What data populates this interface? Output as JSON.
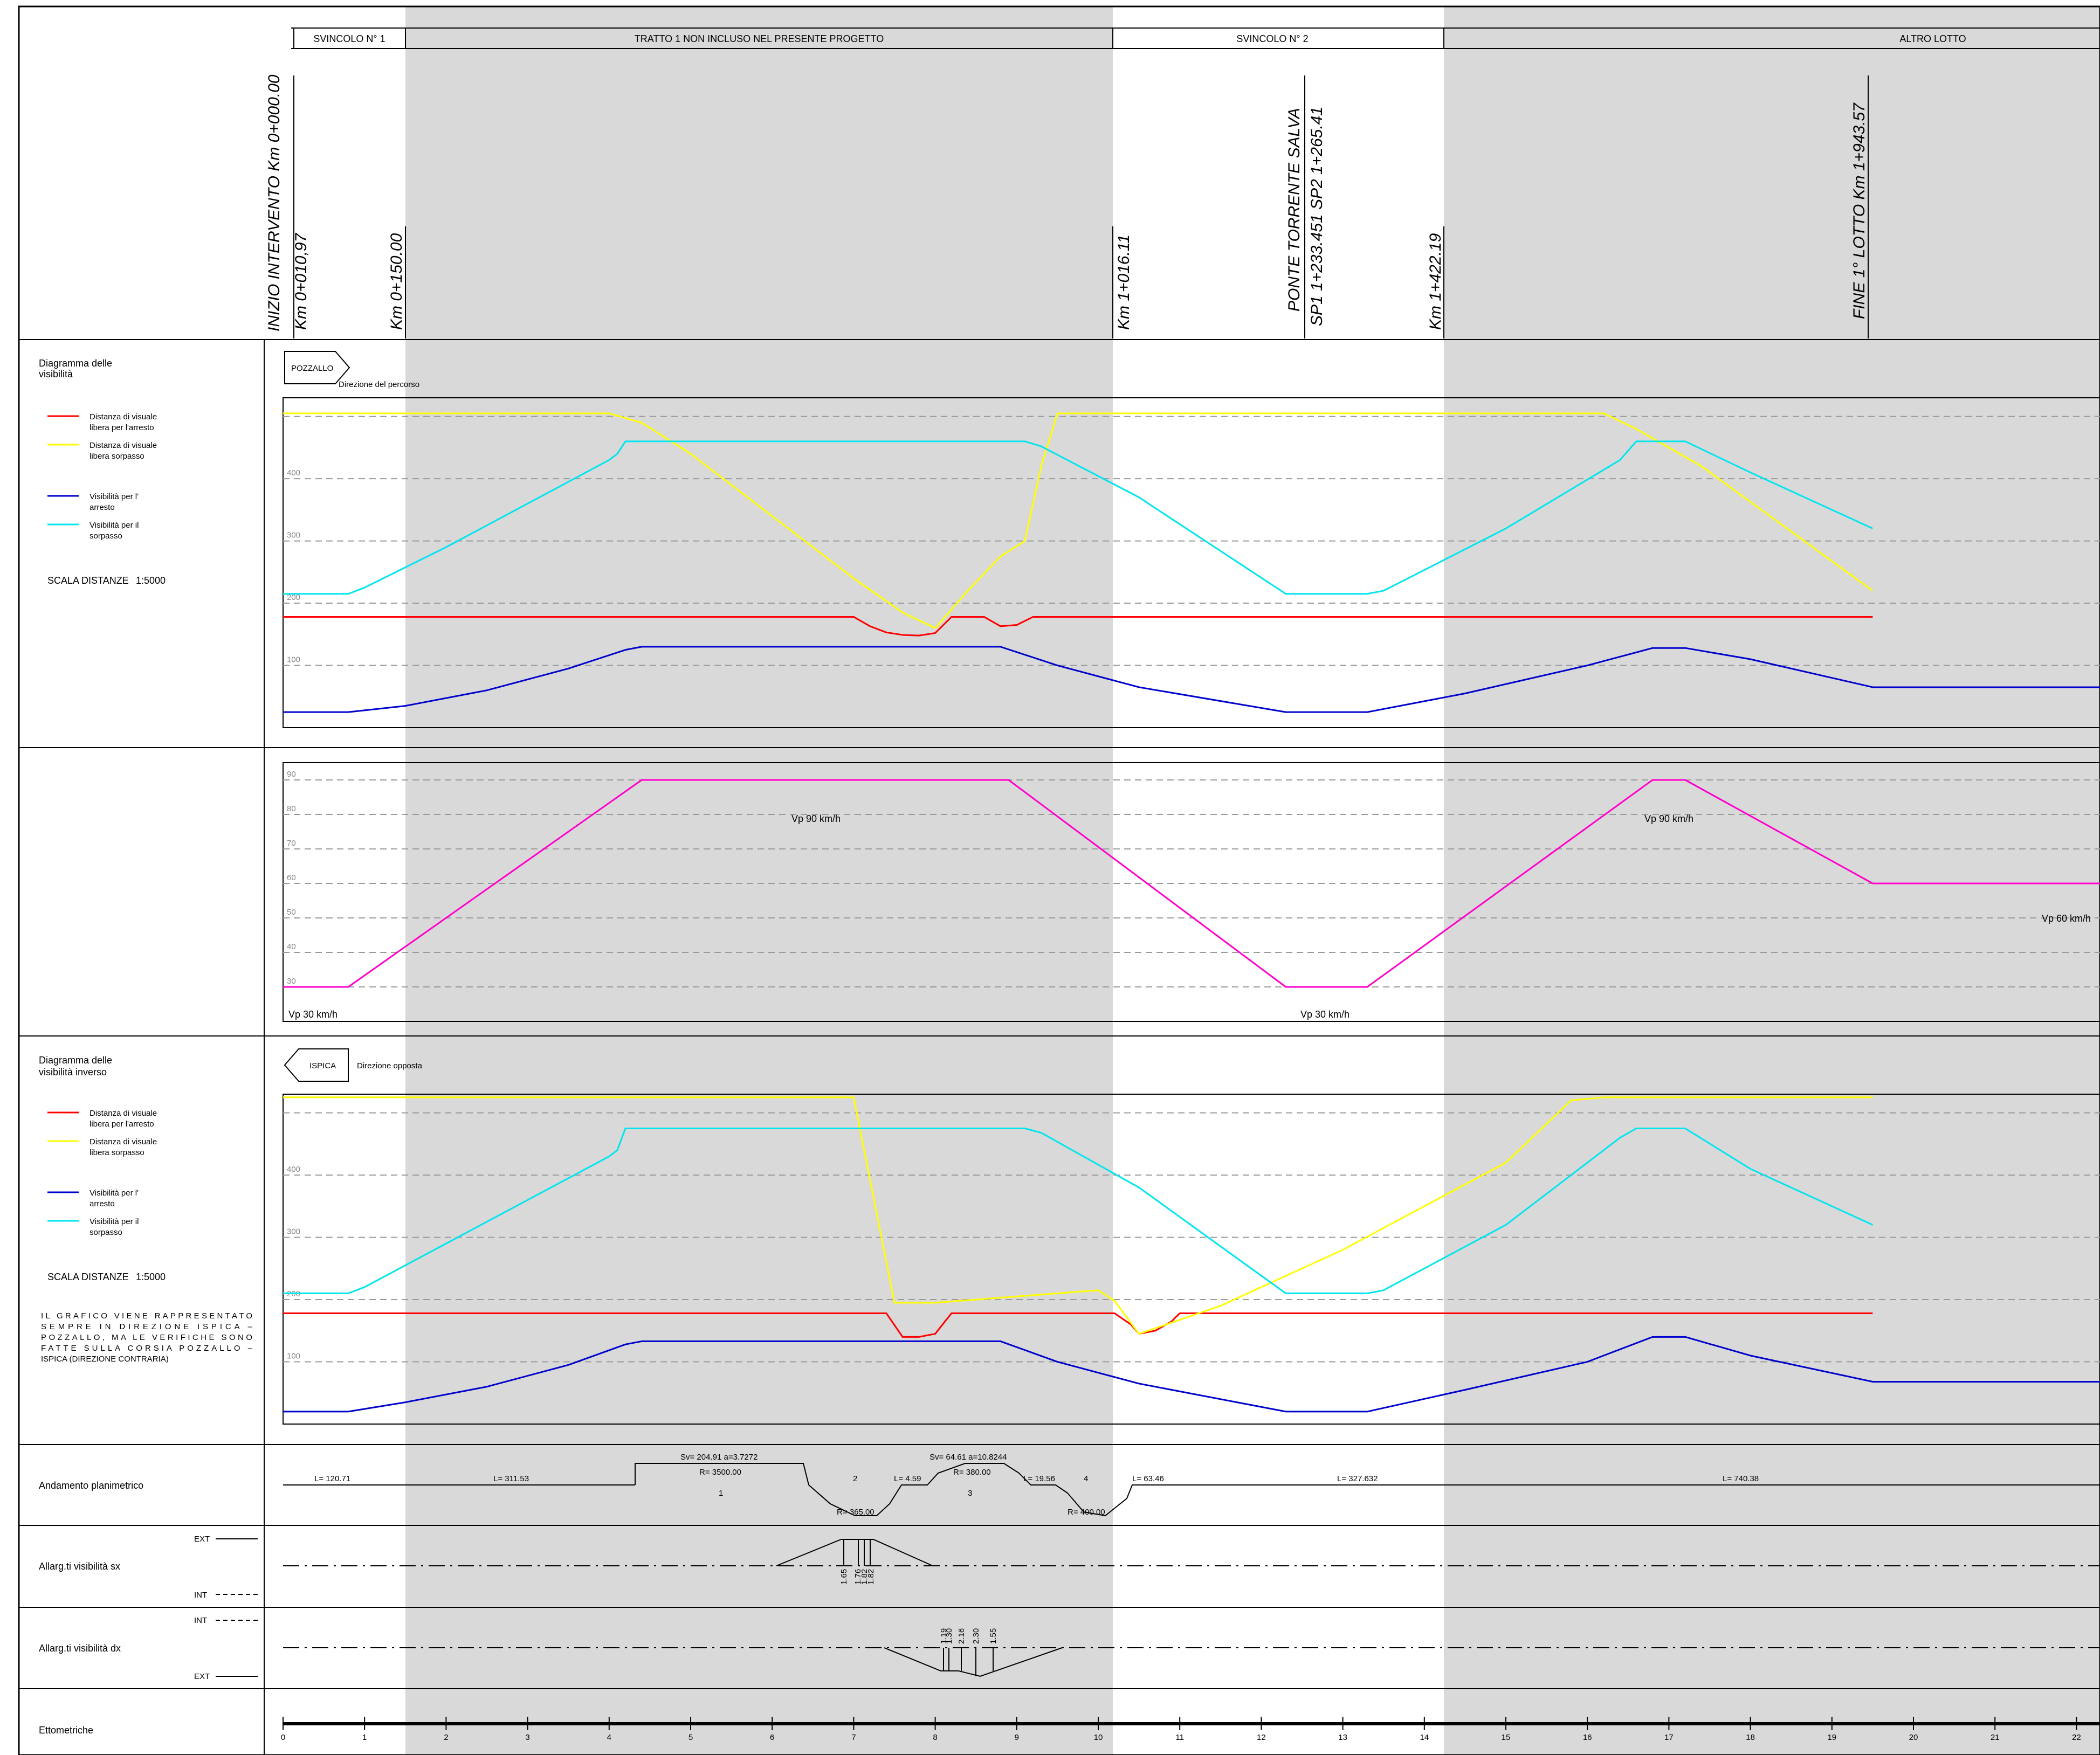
{
  "colors": {
    "stop_distance": "#ff0000",
    "overtake_distance": "#ffff00",
    "stop_visibility": "#0000cc",
    "overtake_visibility": "#00e5ee",
    "speed": "#ff00cc",
    "excluded_zone": "#d9d9d9"
  },
  "header": {
    "sections": [
      {
        "label": "SVINCOLO N° 1"
      },
      {
        "label": "TRATTO 1 NON INCLUSO NEL PRESENTE PROGETTO"
      },
      {
        "label": "SVINCOLO N° 2"
      },
      {
        "label": "ALTRO LOTTO"
      }
    ],
    "stations": [
      {
        "line1": "INIZIO INTERVENTO Km 0+000.00",
        "line2": ""
      },
      {
        "line1": "",
        "line2": "Km 0+010,97"
      },
      {
        "line1": "",
        "line2": "Km 0+150.00"
      },
      {
        "line1": "",
        "line2": "Km 1+016.11"
      },
      {
        "line1": "PONTE TORRENTE SALVA",
        "line2": "SP1 1+233.451 SP2 1+265.41"
      },
      {
        "line1": "",
        "line2": "Km 1+422.19"
      },
      {
        "line1": "FINE 1° LOTTO Km 1+943.57",
        "line2": ""
      }
    ]
  },
  "panel_visibility": {
    "title": "Diagramma delle visibilità",
    "direction_tag": "POZZALLO",
    "direction_label": "Direzione del percorso",
    "legend": [
      {
        "label": "Distanza di visuale libera per l'arresto",
        "line1": "Distanza di visuale",
        "line2": "libera per l'arresto",
        "color": "#ff0000"
      },
      {
        "label": "Distanza di visuale libera sorpasso",
        "line1": "Distanza di visuale",
        "line2": "libera sorpasso",
        "color": "#ffff00"
      },
      {
        "label": "Visibilità per l' arresto",
        "line1": "Visibilità per l'",
        "line2": "arresto",
        "color": "#0000cc"
      },
      {
        "label": "Visibilità per il sorpasso",
        "line1": "Visibilità per il",
        "line2": "sorpasso",
        "color": "#00e5ee"
      }
    ],
    "scale_label": "SCALA DISTANZE",
    "scale_value": "1:5000"
  },
  "panel_speed": {
    "annotations": [
      {
        "text": "Vp 90 km/h",
        "hm": 6.5,
        "v": 83
      },
      {
        "text": "Vp 90 km/h",
        "hm": 17.0,
        "v": 83
      },
      {
        "text": "Vp 30 km/h",
        "hm": 0.4,
        "v": 22
      },
      {
        "text": "Vp 30 km/h",
        "hm": 12.8,
        "v": 22
      },
      {
        "text": "Vp 60 km/h",
        "hm": 21.8,
        "v": 45
      }
    ]
  },
  "panel_inverse": {
    "title": "Diagramma delle visibilità inverso",
    "direction_tag": "ISPICA",
    "direction_label": "Direzione opposta",
    "note_lines": [
      "IL GRAFICO VIENE RAPPRESENTATO",
      "SEMPRE IN DIREZIONE ISPICA –",
      "POZZALLO, MA LE VERIFICHE SONO",
      "FATTE SULLA CORSIA POZZALLO –",
      "ISPICA (DIREZIONE CONTRARIA)"
    ],
    "scale_label": "SCALA DISTANZE",
    "scale_value": "1:5000"
  },
  "rows": {
    "planimetric": "Andamento planimetrico",
    "widening_left": "Allarg.ti visibilità sx",
    "widening_right": "Allarg.ti visibilità dx",
    "ettometric": "Ettometriche",
    "ext": "EXT",
    "int": "INT"
  },
  "planimetric_labels": [
    {
      "text": "L= 120.71",
      "hm": 0.6
    },
    {
      "text": "L= 311.53",
      "hm": 2.7
    },
    {
      "text": "Sv= 204.91 a=3.7272",
      "hm": 5.3
    },
    {
      "text": "R= 3500.00",
      "hm": 5.3
    },
    {
      "text": "1",
      "hm": 5.3
    },
    {
      "text": "2",
      "hm": 7.0
    },
    {
      "text": "R= 365.00",
      "hm": 7.0
    },
    {
      "text": "L= 4.59",
      "hm": 7.6
    },
    {
      "text": "Sv= 64.61 a=10.8244",
      "hm": 8.4
    },
    {
      "text": "R= 380.00",
      "hm": 8.4
    },
    {
      "text": "3",
      "hm": 8.4
    },
    {
      "text": "L= 19.56",
      "hm": 9.3
    },
    {
      "text": "4",
      "hm": 9.8
    },
    {
      "text": "R= 400.00",
      "hm": 9.8
    },
    {
      "text": "L= 63.46",
      "hm": 10.6
    },
    {
      "text": "L= 327.632",
      "hm": 13.2
    },
    {
      "text": "L= 740.38",
      "hm": 17.7
    }
  ],
  "widening_left_values": [
    "1.65",
    "1.76",
    "1.82",
    "1.82"
  ],
  "widening_right_values": [
    "1.19",
    "1.30",
    "2.16",
    "2.30",
    "1.55"
  ],
  "chart_data": [
    {
      "type": "line",
      "title": "Diagramma delle visibilità",
      "x_unit": "hm",
      "xlim": [
        0,
        22.5
      ],
      "ylim": [
        0,
        530
      ],
      "yticks": [
        100,
        200,
        300,
        400
      ],
      "grid": true,
      "series": [
        {
          "name": "Distanza di visuale libera per l'arresto",
          "color": "#ff0000",
          "x": [
            0,
            7.0,
            7.2,
            7.4,
            7.6,
            7.8,
            8.0,
            8.2,
            8.6,
            8.8,
            9.0,
            9.2,
            19.5
          ],
          "y": [
            178,
            178,
            163,
            153,
            149,
            148,
            152,
            178,
            178,
            163,
            165,
            178,
            178
          ]
        },
        {
          "name": "Distanza di visuale libera sorpasso",
          "color": "#ffff00",
          "x": [
            0,
            4.0,
            4.4,
            5.0,
            6.0,
            7.0,
            7.6,
            8.0,
            8.4,
            8.8,
            9.1,
            9.3,
            9.5,
            16.2,
            16.6,
            17.4,
            19.5
          ],
          "y": [
            505,
            505,
            490,
            440,
            340,
            240,
            185,
            160,
            220,
            275,
            300,
            420,
            505,
            505,
            480,
            420,
            220
          ]
        },
        {
          "name": "Visibilità per l' arresto",
          "color": "#0000cc",
          "x": [
            0,
            0.8,
            1.5,
            2.5,
            3.5,
            4.2,
            4.4,
            6.5,
            8.0,
            8.8,
            9.5,
            10.5,
            12.3,
            13.3,
            14.5,
            16.0,
            16.8,
            17.2,
            18.0,
            19.5,
            22.5
          ],
          "y": [
            25,
            25,
            35,
            60,
            95,
            125,
            130,
            130,
            130,
            130,
            100,
            65,
            25,
            25,
            55,
            100,
            128,
            128,
            110,
            65,
            65
          ]
        },
        {
          "name": "Visibilità per il sorpasso",
          "color": "#00e5ee",
          "x": [
            0,
            0.8,
            1.0,
            2.0,
            3.0,
            4.0,
            4.1,
            4.2,
            9.1,
            9.3,
            10.5,
            12.3,
            13.3,
            13.5,
            15.0,
            16.4,
            16.6,
            17.2,
            18.0,
            19.5
          ],
          "y": [
            215,
            215,
            225,
            290,
            360,
            430,
            440,
            460,
            460,
            452,
            370,
            215,
            215,
            220,
            320,
            430,
            460,
            460,
            410,
            320
          ]
        }
      ]
    },
    {
      "type": "line",
      "title": "",
      "x_unit": "hm",
      "xlim": [
        0,
        22.5
      ],
      "ylim": [
        20,
        95
      ],
      "yticks": [
        30,
        40,
        50,
        60,
        70,
        80,
        90
      ],
      "grid": true,
      "series": [
        {
          "color": "#ff00cc",
          "x": [
            0,
            0.8,
            4.4,
            8.9,
            12.3,
            13.3,
            16.8,
            17.2,
            19.5,
            22.5
          ],
          "y": [
            30,
            30,
            90,
            90,
            30,
            30,
            90,
            90,
            60,
            60
          ]
        }
      ]
    },
    {
      "type": "line",
      "title": "Diagramma delle visibilità inverso",
      "x_unit": "hm",
      "xlim": [
        0,
        22.5
      ],
      "ylim": [
        0,
        530
      ],
      "yticks": [
        100,
        200,
        300,
        400
      ],
      "grid": true,
      "series": [
        {
          "name": "Distanza di visuale libera per l'arresto",
          "color": "#ff0000",
          "x": [
            0,
            7.4,
            7.6,
            7.8,
            8.0,
            8.2,
            10.2,
            10.4,
            10.5,
            10.7,
            10.9,
            11.0,
            19.5
          ],
          "y": [
            178,
            178,
            140,
            140,
            145,
            178,
            178,
            160,
            145,
            150,
            165,
            178,
            178
          ]
        },
        {
          "name": "Distanza di visuale libera sorpasso",
          "color": "#ffff00",
          "x": [
            0,
            7.0,
            7.5,
            8.0,
            10.0,
            10.2,
            10.5,
            11.5,
            13.0,
            15.0,
            15.8,
            16.2,
            19.5
          ],
          "y": [
            525,
            525,
            195,
            195,
            215,
            198,
            145,
            190,
            280,
            420,
            520,
            525,
            525
          ]
        },
        {
          "name": "Visibilità per l' arresto",
          "color": "#0000cc",
          "x": [
            0,
            0.8,
            1.5,
            2.5,
            3.5,
            4.2,
            4.4,
            6.5,
            8.0,
            8.8,
            9.5,
            10.5,
            12.3,
            13.3,
            14.5,
            16.0,
            16.8,
            17.2,
            18.0,
            19.5,
            22.5
          ],
          "y": [
            20,
            20,
            35,
            60,
            95,
            128,
            133,
            133,
            133,
            133,
            100,
            65,
            20,
            20,
            55,
            100,
            140,
            140,
            110,
            68,
            68
          ]
        },
        {
          "name": "Visibilità per il sorpasso",
          "color": "#00e5ee",
          "x": [
            0,
            0.8,
            1.0,
            2.0,
            3.0,
            4.0,
            4.1,
            4.2,
            9.1,
            9.3,
            10.5,
            12.3,
            13.3,
            13.5,
            15.0,
            16.4,
            16.6,
            17.2,
            18.0,
            19.5
          ],
          "y": [
            210,
            210,
            220,
            290,
            360,
            430,
            440,
            475,
            475,
            468,
            380,
            210,
            210,
            215,
            320,
            460,
            475,
            475,
            410,
            320
          ]
        }
      ]
    }
  ],
  "ettometric_ticks": [
    "0",
    "1",
    "2",
    "3",
    "4",
    "5",
    "6",
    "7",
    "8",
    "9",
    "10",
    "11",
    "12",
    "13",
    "14",
    "15",
    "16",
    "17",
    "18",
    "19",
    "20",
    "21",
    "22"
  ]
}
